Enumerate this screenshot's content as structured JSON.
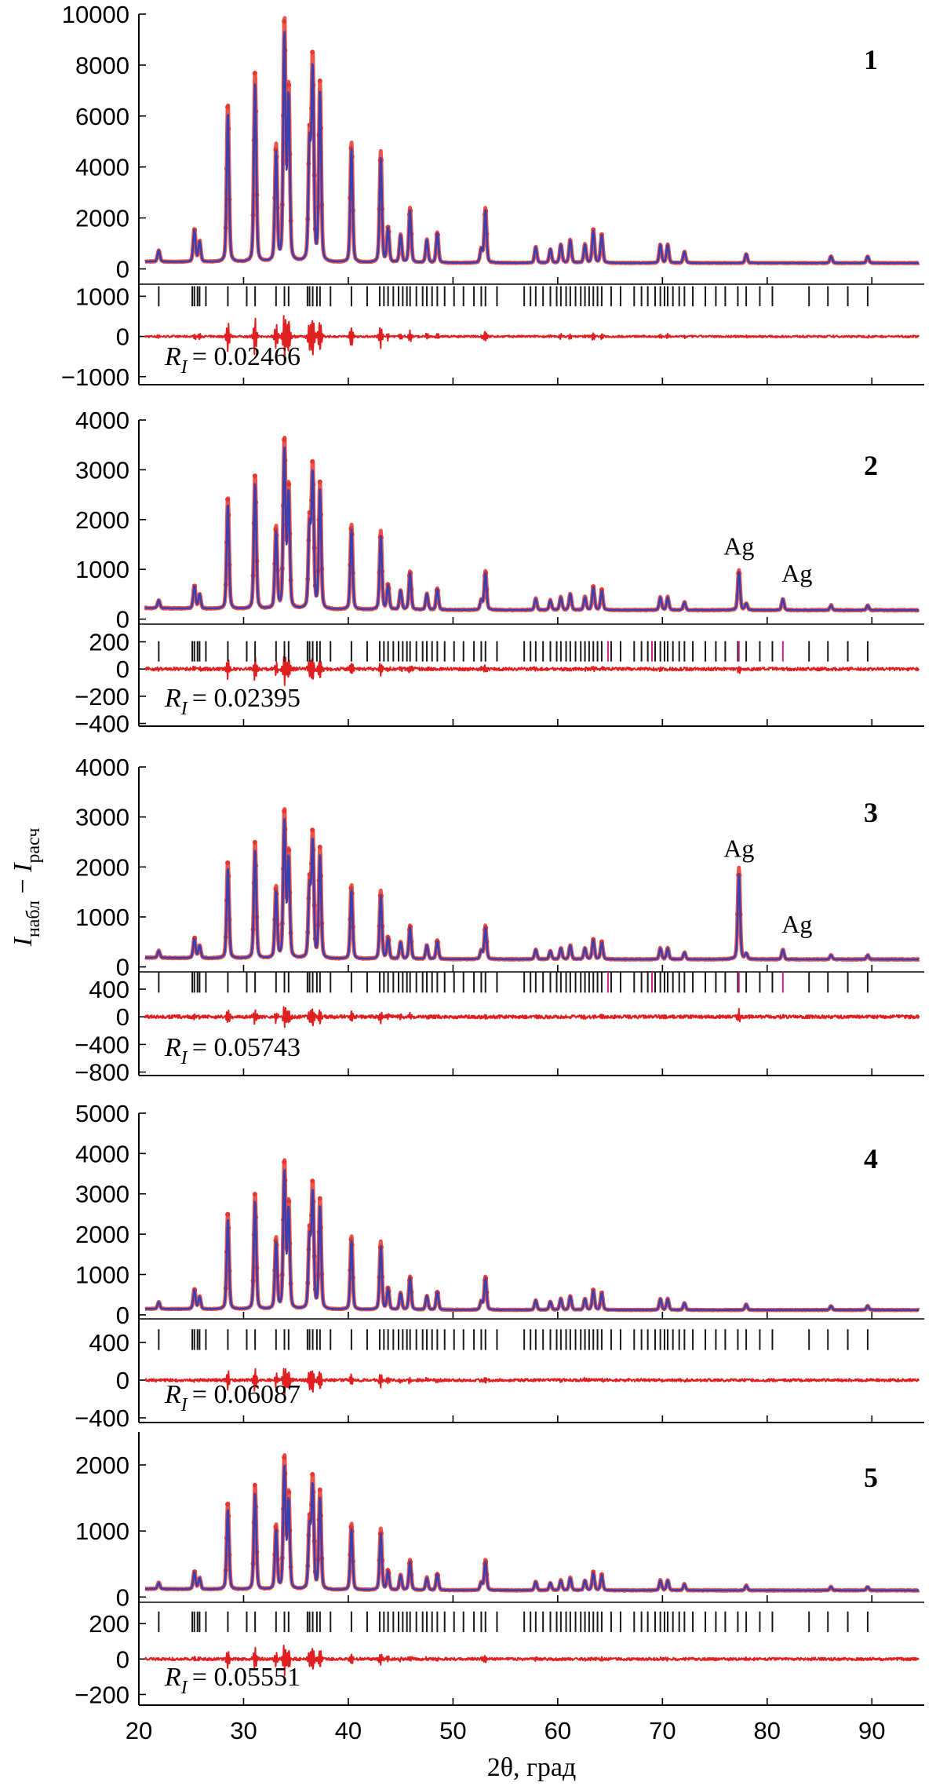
{
  "chart_data": {
    "type": "line",
    "xlabel": "2θ, град",
    "ylabel_main": "I",
    "ylabel_main_sub": "набл",
    "ylabel_sep": " − ",
    "ylabel_calc": "I",
    "ylabel_calc_sub": "расч",
    "xlim": [
      20,
      95
    ],
    "x_ticks": [
      20,
      30,
      40,
      50,
      60,
      70,
      80,
      90
    ],
    "x_tick_labels": [
      "20",
      "30",
      "40",
      "50",
      "60",
      "70",
      "80",
      "90"
    ],
    "colors": {
      "observed": "#e8362e",
      "calculated": "#3b3fb0",
      "difference": "#e02020",
      "bragg": "#1a1a1a",
      "bragg_ag": "#d0208a"
    },
    "peaks": [
      [
        21.9,
        0.05
      ],
      [
        25.3,
        0.14
      ],
      [
        25.8,
        0.09
      ],
      [
        28.5,
        0.66
      ],
      [
        31.1,
        0.79
      ],
      [
        33.1,
        0.48
      ],
      [
        33.9,
        1.0
      ],
      [
        34.3,
        0.72
      ],
      [
        36.3,
        0.5
      ],
      [
        36.6,
        0.84
      ],
      [
        37.3,
        0.74
      ],
      [
        40.3,
        0.5
      ],
      [
        43.1,
        0.46
      ],
      [
        43.8,
        0.15
      ],
      [
        45.0,
        0.12
      ],
      [
        45.9,
        0.23
      ],
      [
        47.5,
        0.1
      ],
      [
        48.5,
        0.13
      ],
      [
        52.7,
        0.06
      ],
      [
        53.1,
        0.23
      ],
      [
        57.9,
        0.07
      ],
      [
        59.3,
        0.06
      ],
      [
        60.3,
        0.08
      ],
      [
        61.2,
        0.1
      ],
      [
        62.6,
        0.08
      ],
      [
        63.4,
        0.14
      ],
      [
        64.2,
        0.12
      ],
      [
        69.8,
        0.08
      ],
      [
        70.5,
        0.08
      ],
      [
        72.1,
        0.05
      ],
      [
        78.0,
        0.04
      ],
      [
        86.1,
        0.03
      ],
      [
        89.6,
        0.03
      ]
    ],
    "bragg_positions": [
      21.9,
      25.1,
      25.3,
      25.6,
      25.8,
      26.4,
      28.5,
      30.3,
      31.1,
      33.1,
      33.9,
      34.3,
      36.1,
      36.3,
      36.6,
      37.0,
      37.3,
      38.3,
      40.3,
      41.8,
      43.0,
      43.4,
      43.8,
      44.3,
      44.8,
      45.2,
      45.6,
      45.9,
      46.5,
      47.1,
      47.5,
      48.0,
      48.5,
      49.2,
      50.1,
      51.0,
      52.0,
      52.7,
      53.1,
      54.2,
      56.8,
      57.4,
      57.9,
      58.6,
      59.3,
      59.9,
      60.3,
      60.8,
      61.2,
      61.7,
      62.2,
      62.6,
      63.0,
      63.4,
      63.8,
      64.2,
      65.1,
      66.0,
      67.3,
      68.0,
      68.6,
      69.3,
      69.8,
      70.2,
      70.5,
      71.0,
      71.6,
      72.1,
      72.9,
      74.1,
      75.1,
      76.0,
      77.2,
      78.0,
      79.3,
      80.5,
      84.0,
      85.8,
      87.7,
      89.6
    ],
    "panels": [
      {
        "label": "1",
        "ri_symbol": "R",
        "ri_sub": "I",
        "ri_value": "= 0.02466",
        "ylim": [
          -600,
          10000
        ],
        "peak_max": 8900,
        "background": 230,
        "obs_excess": 0.06,
        "yticks": [
          0,
          2000,
          4000,
          6000,
          8000,
          10000
        ],
        "ytick_labels": [
          "0",
          "2000",
          "4000",
          "6000",
          "8000",
          "10000"
        ],
        "diff_ylim": [
          -1200,
          1300
        ],
        "diff_yticks": [
          -1000,
          0,
          1000
        ],
        "diff_ytick_labels": [
          "−1000",
          "0",
          "1000"
        ],
        "diff_noise": 25,
        "diff_peak_factor": 0.06,
        "bragg_center": 1000,
        "bragg_half": 170,
        "ag": []
      },
      {
        "label": "2",
        "ri_symbol": "R",
        "ri_sub": "I",
        "ri_value": "= 0.02395",
        "ylim": [
          -100,
          4000
        ],
        "peak_max": 3200,
        "background": 180,
        "obs_excess": 0.06,
        "yticks": [
          0,
          1000,
          2000,
          3000,
          4000
        ],
        "ytick_labels": [
          "0",
          "1000",
          "2000",
          "3000",
          "4000"
        ],
        "diff_ylim": [
          -420,
          330
        ],
        "diff_yticks": [
          -400,
          -200,
          0,
          200
        ],
        "diff_ytick_labels": [
          "−400",
          "−200",
          "0",
          "200"
        ],
        "diff_noise": 12,
        "diff_peak_factor": 0.03,
        "bragg_center": 130,
        "bragg_half": 60,
        "ag": [
          {
            "x": 77.3,
            "height": 0.24,
            "label": "Ag"
          },
          {
            "x": 81.5,
            "height": 0.07,
            "label": "Ag"
          }
        ]
      },
      {
        "label": "3",
        "ri_symbol": "R",
        "ri_sub": "I",
        "ri_value": "= 0.05743",
        "ylim": [
          -100,
          4000
        ],
        "peak_max": 2750,
        "background": 150,
        "obs_excess": 0.07,
        "yticks": [
          0,
          1000,
          2000,
          3000,
          4000
        ],
        "ytick_labels": [
          "0",
          "1000",
          "2000",
          "3000",
          "4000"
        ],
        "diff_ylim": [
          -850,
          650
        ],
        "diff_yticks": [
          -800,
          -400,
          0,
          400
        ],
        "diff_ytick_labels": [
          "−800",
          "−400",
          "0",
          "400"
        ],
        "diff_noise": 25,
        "diff_peak_factor": 0.05,
        "bragg_center": 500,
        "bragg_half": 120,
        "ag": [
          {
            "x": 77.3,
            "height": 0.62,
            "label": "Ag"
          },
          {
            "x": 81.5,
            "height": 0.07,
            "label": "Ag"
          }
        ]
      },
      {
        "label": "4",
        "ri_symbol": "R",
        "ri_sub": "I",
        "ri_value": "= 0.06087",
        "ylim": [
          -100,
          5000
        ],
        "peak_max": 3400,
        "background": 120,
        "obs_excess": 0.07,
        "yticks": [
          0,
          1000,
          2000,
          3000,
          4000,
          5000
        ],
        "ytick_labels": [
          "0",
          "1000",
          "2000",
          "3000",
          "4000",
          "5000"
        ],
        "diff_ylim": [
          -450,
          650
        ],
        "diff_yticks": [
          -400,
          0,
          400
        ],
        "diff_ytick_labels": [
          "−400",
          "0",
          "400"
        ],
        "diff_noise": 15,
        "diff_peak_factor": 0.04,
        "bragg_center": 430,
        "bragg_half": 100,
        "ag": []
      },
      {
        "label": "5",
        "ri_symbol": "R",
        "ri_sub": "I",
        "ri_value": "= 0.05551",
        "ylim": [
          -80,
          2500
        ],
        "peak_max": 1850,
        "background": 100,
        "obs_excess": 0.08,
        "yticks": [
          0,
          1000,
          2000
        ],
        "ytick_labels": [
          "0",
          "1000",
          "2000"
        ],
        "diff_ylim": [
          -260,
          320
        ],
        "diff_yticks": [
          -200,
          0,
          200
        ],
        "diff_ytick_labels": [
          "−200",
          "0",
          "200"
        ],
        "diff_noise": 8,
        "diff_peak_factor": 0.04,
        "bragg_center": 210,
        "bragg_half": 50,
        "ag": []
      }
    ]
  }
}
